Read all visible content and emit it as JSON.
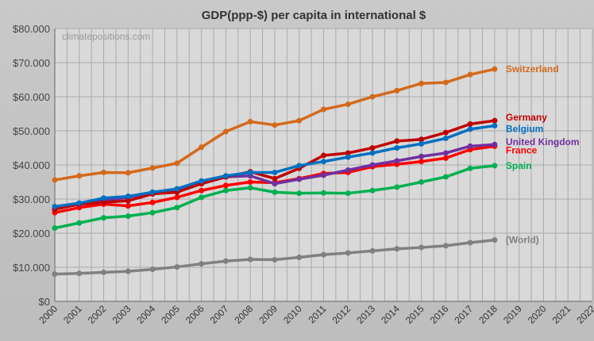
{
  "chart_data": {
    "type": "line",
    "title": "GDP(ppp-$) per capita in international $",
    "watermark": "climatepositions.com",
    "xlabel": "",
    "ylabel": "",
    "ylim": [
      0,
      80000
    ],
    "xlim": [
      2000,
      2022
    ],
    "grid": true,
    "legend": "inline labels at line ends",
    "y_ticks": [
      "$0",
      "$10.000",
      "$20.000",
      "$30.000",
      "$40.000",
      "$50.000",
      "$60.000",
      "$70.000",
      "$80.000"
    ],
    "x": [
      2000,
      2001,
      2002,
      2003,
      2004,
      2005,
      2006,
      2007,
      2008,
      2009,
      2010,
      2011,
      2012,
      2013,
      2014,
      2015,
      2016,
      2017,
      2018
    ],
    "x_ticks": [
      "2000",
      "2001",
      "2002",
      "2003",
      "2004",
      "2005",
      "2006",
      "2007",
      "2008",
      "2009",
      "2010",
      "2011",
      "2012",
      "2013",
      "2014",
      "2015",
      "2016",
      "2017",
      "2018",
      "2019",
      "2020",
      "2021",
      "2022"
    ],
    "series": [
      {
        "name": "Switzerland",
        "color": "#d4691c",
        "values": [
          35600,
          36800,
          37800,
          37700,
          39100,
          40500,
          45200,
          49800,
          52700,
          51700,
          53000,
          56300,
          57800,
          60000,
          61800,
          63900,
          64200,
          66500,
          68100
        ]
      },
      {
        "name": "Germany",
        "color": "#c00000",
        "values": [
          27000,
          28500,
          29000,
          29500,
          31500,
          32000,
          34500,
          36500,
          38000,
          36000,
          39000,
          42800,
          43500,
          45000,
          47000,
          47500,
          49500,
          52000,
          53000
        ]
      },
      {
        "name": "Belgium",
        "color": "#0070c0",
        "values": [
          27800,
          28800,
          30300,
          30800,
          32000,
          33000,
          35300,
          36800,
          37800,
          37800,
          39800,
          41000,
          42300,
          43500,
          45000,
          46200,
          47800,
          50500,
          51500
        ]
      },
      {
        "name": "United Kingdom",
        "color": "#7030a0",
        "values": [
          27000,
          28500,
          29500,
          30500,
          32000,
          32500,
          34500,
          36500,
          36800,
          34500,
          35800,
          37000,
          38500,
          40000,
          41200,
          42500,
          43500,
          45500,
          46000
        ]
      },
      {
        "name": "France",
        "color": "#ff0000",
        "values": [
          26000,
          27500,
          28500,
          28000,
          29000,
          30500,
          32500,
          34000,
          35000,
          34800,
          36000,
          37500,
          37800,
          39500,
          40200,
          41000,
          42000,
          44500,
          45500
        ]
      },
      {
        "name": "Spain",
        "color": "#00b050",
        "values": [
          21500,
          23000,
          24500,
          25000,
          26000,
          27500,
          30500,
          32500,
          33300,
          32000,
          31700,
          31800,
          31700,
          32500,
          33500,
          35000,
          36500,
          39000,
          39800
        ]
      },
      {
        "name": "(World)",
        "color": "#808080",
        "values": [
          8000,
          8200,
          8500,
          8800,
          9400,
          10100,
          11000,
          11800,
          12300,
          12200,
          12900,
          13700,
          14200,
          14800,
          15400,
          15800,
          16300,
          17200,
          18000
        ]
      }
    ]
  }
}
